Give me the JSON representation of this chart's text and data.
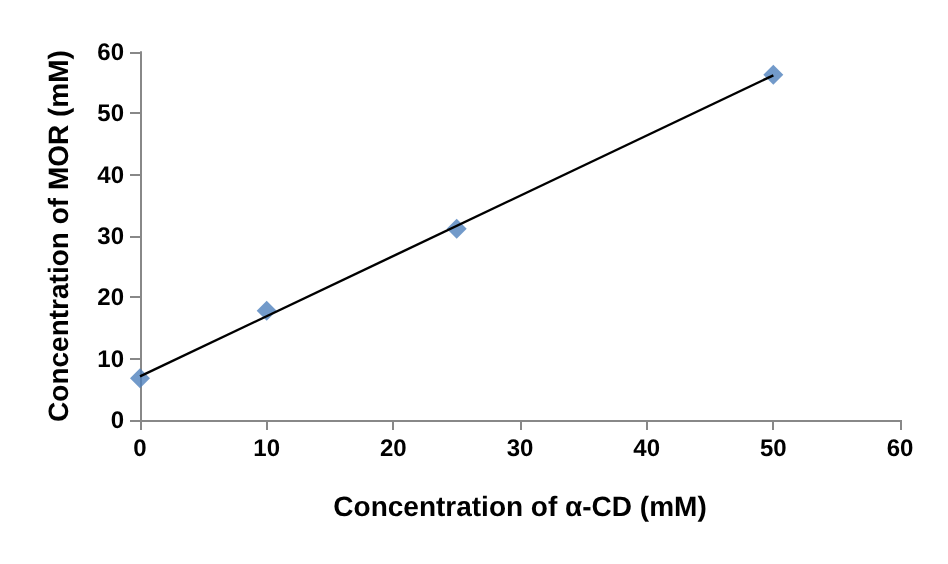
{
  "chart_data": {
    "type": "scatter",
    "xlabel": "Concentration of α-CD (mM)",
    "ylabel": "Concentration of MOR (mM)",
    "series": [
      {
        "color": "#4f81bd",
        "marker": "diamond",
        "x": [
          0,
          10,
          25,
          50
        ],
        "values": [
          6.8,
          17.8,
          31.2,
          56.3
        ]
      },
      {
        "type": "line",
        "color": "#000000",
        "marker": "none",
        "x": [
          0,
          50
        ],
        "values": [
          7.1,
          56.2
        ]
      }
    ],
    "xlim": [
      0,
      60
    ],
    "xticks": [
      0,
      10,
      20,
      30,
      40,
      50,
      60
    ],
    "ylim": [
      0,
      60
    ],
    "yticks": [
      0,
      10,
      20,
      30,
      40,
      50,
      60
    ],
    "grid": false
  }
}
